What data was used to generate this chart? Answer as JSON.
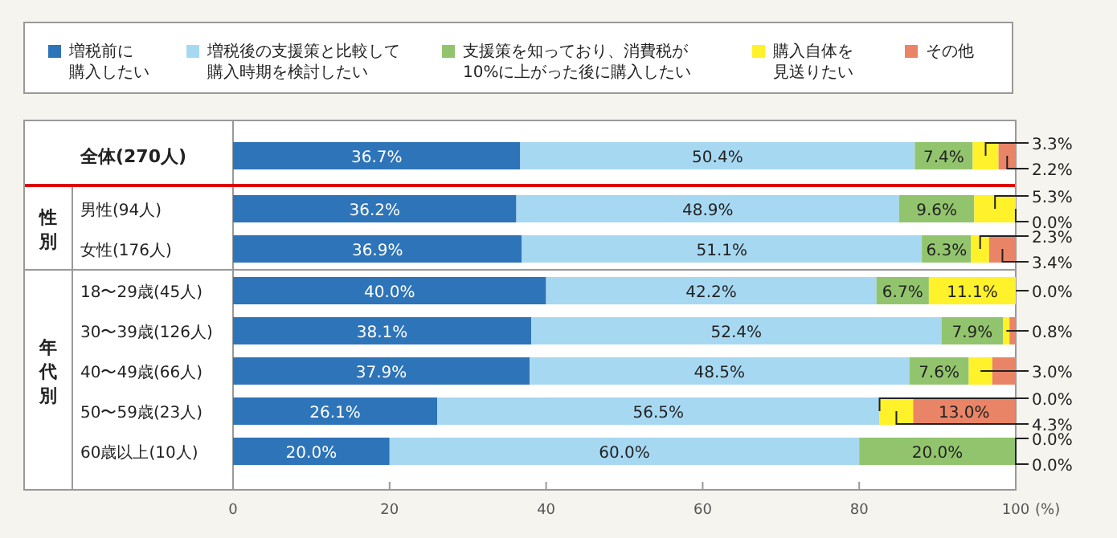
{
  "chart_data": {
    "type": "bar",
    "orientation": "horizontal",
    "stacked": true,
    "legend": "top",
    "xlabel": "(%)",
    "xlim": [
      0,
      100
    ],
    "xticks": [
      0,
      20,
      40,
      60,
      80,
      100
    ],
    "categories": [
      "全体(270人)",
      "男性(94人)",
      "女性(176人)",
      "18〜29歳(45人)",
      "30〜39歳(126人)",
      "40〜49歳(66人)",
      "50〜59歳(23人)",
      "60歳以上(10人)"
    ],
    "annotations": [
      "性別",
      "年代別"
    ],
    "series": [
      {
        "name": "増税前に購入したい",
        "color": "#2e74b9",
        "values": [
          36.7,
          36.2,
          36.9,
          40.0,
          38.1,
          37.9,
          26.1,
          20.0
        ],
        "value_labels": [
          "36.7%",
          "36.2%",
          "36.9%",
          "40.0%",
          "38.1%",
          "37.9%",
          "26.1%",
          "20.0%"
        ]
      },
      {
        "name": "増税後の支援策と比較して購入時期を検討したい",
        "color": "#a7d8f2",
        "values": [
          50.4,
          48.9,
          51.1,
          42.2,
          52.4,
          48.5,
          56.5,
          60.0
        ],
        "value_labels": [
          "50.4%",
          "48.9%",
          "51.1%",
          "42.2%",
          "52.4%",
          "48.5%",
          "56.5%",
          "60.0%"
        ]
      },
      {
        "name": "支援策を知っており、消費税が10%に上がった後に購入したい",
        "color": "#92c46d",
        "values": [
          7.4,
          9.6,
          6.3,
          6.7,
          7.9,
          7.6,
          0.0,
          20.0
        ],
        "value_labels": [
          "7.4%",
          "9.6%",
          "6.3%",
          "6.7%",
          "7.9%",
          "7.6%",
          "0.0%",
          "20.0%"
        ]
      },
      {
        "name": "購入自体を見送りたい",
        "color": "#fff12a",
        "values": [
          3.3,
          5.3,
          2.3,
          11.1,
          0.8,
          3.0,
          4.3,
          0.0
        ],
        "value_labels": [
          "3.3%",
          "5.3%",
          "2.3%",
          "11.1%",
          "0.8%",
          "3.0%",
          "4.3%",
          "0.0%"
        ]
      },
      {
        "name": "その他",
        "color": "#ea8466",
        "values": [
          2.2,
          0.0,
          3.4,
          0.0,
          0.8,
          3.0,
          13.0,
          0.0
        ],
        "value_labels": [
          "2.2%",
          "0.0%",
          "3.4%",
          "0.0%",
          null,
          null,
          "13.0%",
          "0.0%"
        ]
      }
    ]
  }
}
